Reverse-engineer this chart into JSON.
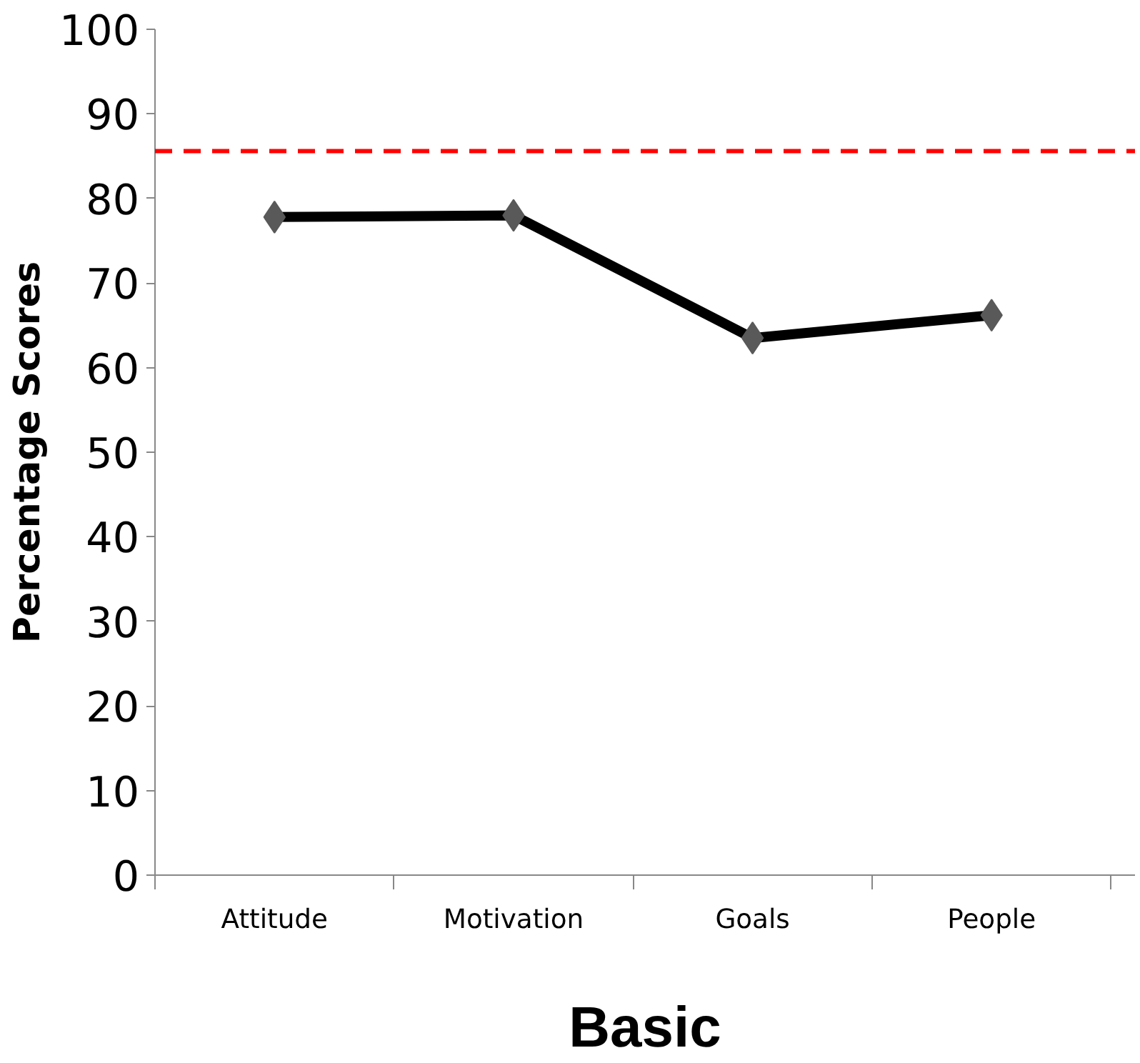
{
  "chart_data": {
    "type": "line",
    "xlabel": "Basic",
    "ylabel": "Percentage Scores",
    "categories": [
      "Attitude",
      "Motivation",
      "Goals",
      "People"
    ],
    "series": [
      {
        "color": "#000000",
        "values": [
          77.8,
          78.0,
          63.5,
          66.2
        ]
      }
    ],
    "ylim": [
      0,
      100
    ],
    "yticks": [
      0,
      10,
      20,
      30,
      40,
      50,
      60,
      70,
      80,
      90,
      100
    ],
    "ref_lines": [
      {
        "axis": "y",
        "value": 85.6,
        "color": "#ff0000",
        "line_style": "dashed"
      }
    ],
    "marker": "diamond",
    "grid": false
  }
}
